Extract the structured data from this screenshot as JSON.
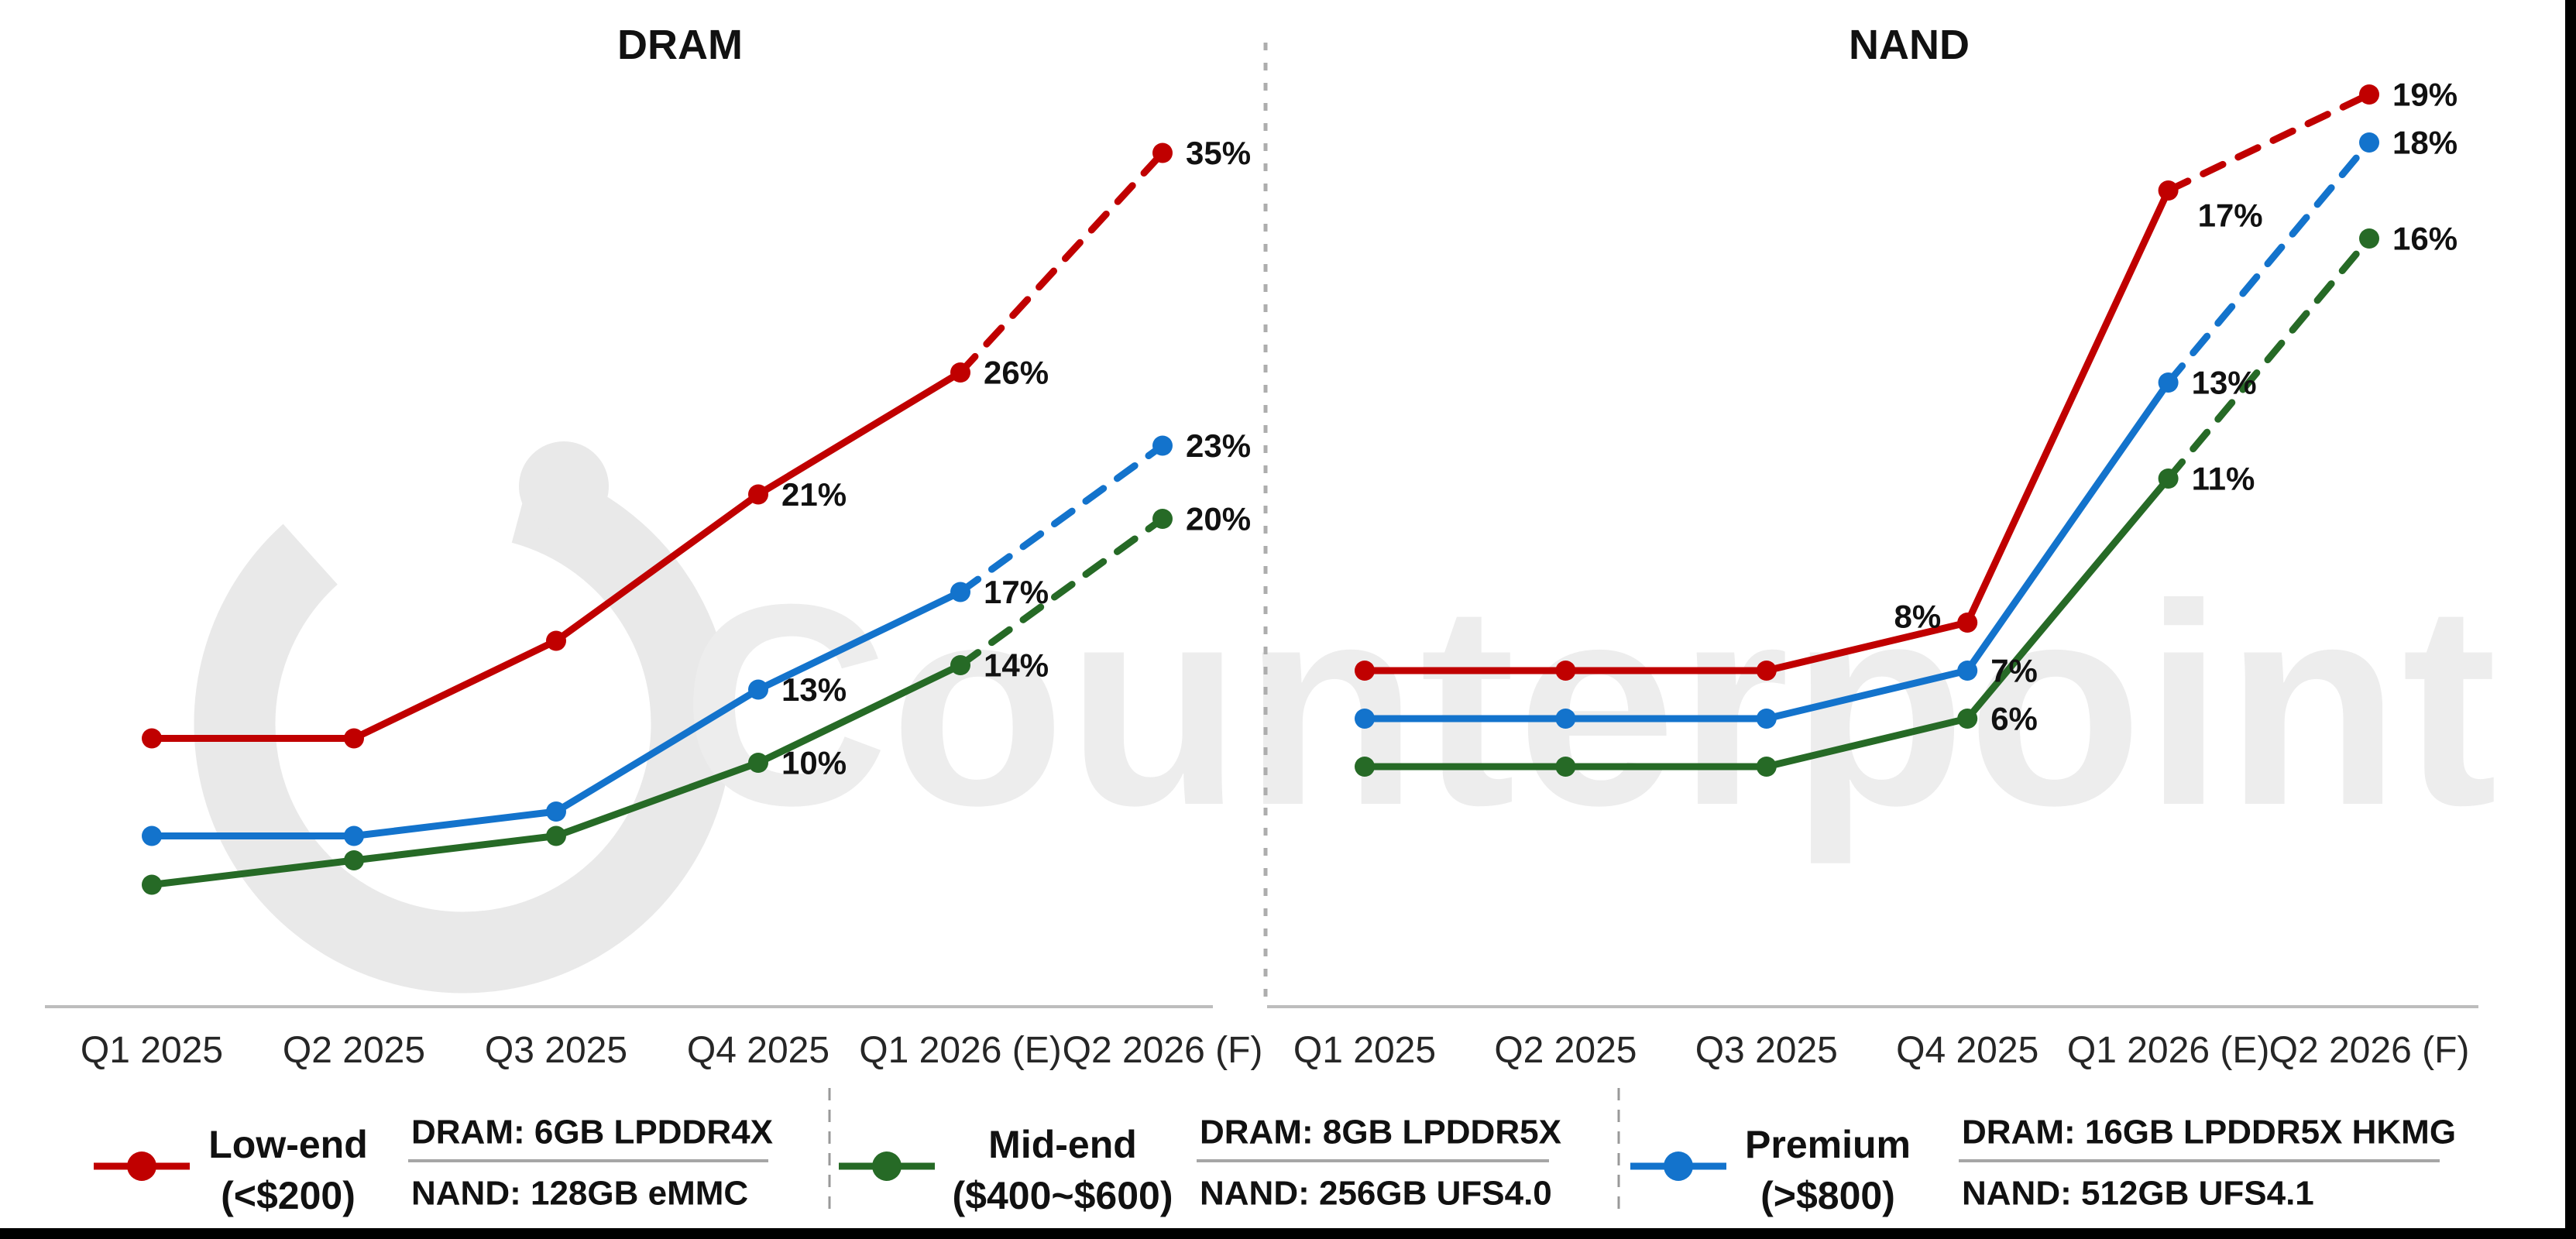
{
  "page": {
    "background": "#FFFFFF",
    "frame": {
      "right_bar_color": "#000000",
      "bottom_bar_color": "#000000"
    }
  },
  "watermark": {
    "text": "Counterpoint",
    "text_color": "#EDEDED",
    "logo_color": "#E9E9E9"
  },
  "chart_data": [
    {
      "type": "line",
      "title": "DRAM",
      "categories": [
        "Q1 2025",
        "Q2 2025",
        "Q3 2025",
        "Q4 2025",
        "Q1 2026 (E)",
        "Q2 2026 (F)"
      ],
      "ylim": [
        0,
        38
      ],
      "grid": false,
      "legend_position": "bottom",
      "unlabeled_values_estimated": true,
      "series": [
        {
          "name": "Low-end (<$200)",
          "color": "#C00000",
          "values": [
            11,
            11,
            15,
            21,
            26,
            35
          ],
          "labels": [
            "",
            "",
            "",
            "21%",
            "26%",
            "35%"
          ],
          "dashed_last_segment": true
        },
        {
          "name": "Mid-end ($400~$600)",
          "color": "#266A26",
          "values": [
            5,
            6,
            7,
            10,
            14,
            20
          ],
          "labels": [
            "",
            "",
            "",
            "10%",
            "14%",
            "20%"
          ],
          "dashed_last_segment": true
        },
        {
          "name": "Premium (>$800)",
          "color": "#1373CC",
          "values": [
            7,
            7,
            8,
            13,
            17,
            23
          ],
          "labels": [
            "",
            "",
            "",
            "13%",
            "17%",
            "23%"
          ],
          "dashed_last_segment": true
        }
      ]
    },
    {
      "type": "line",
      "title": "NAND",
      "categories": [
        "Q1 2025",
        "Q2 2025",
        "Q3 2025",
        "Q4 2025",
        "Q1 2026 (E)",
        "Q2 2026 (F)"
      ],
      "ylim": [
        0,
        20
      ],
      "grid": false,
      "legend_position": "bottom",
      "unlabeled_values_estimated": true,
      "series": [
        {
          "name": "Low-end (<$200)",
          "color": "#C00000",
          "values": [
            7,
            7,
            7,
            8,
            17,
            19
          ],
          "labels": [
            "",
            "",
            "",
            "8%",
            "17%",
            "19%"
          ],
          "dashed_last_segment": true
        },
        {
          "name": "Mid-end ($400~$600)",
          "color": "#266A26",
          "values": [
            5,
            5,
            5,
            6,
            11,
            16
          ],
          "labels": [
            "",
            "",
            "",
            "6%",
            "11%",
            "16%"
          ],
          "dashed_last_segment": true
        },
        {
          "name": "Premium (>$800)",
          "color": "#1373CC",
          "values": [
            6,
            6,
            6,
            7,
            13,
            18
          ],
          "labels": [
            "",
            "",
            "",
            "7%",
            "13%",
            "18%"
          ],
          "dashed_last_segment": true
        }
      ]
    }
  ],
  "legend": {
    "items": [
      {
        "name_line1": "Low-end",
        "name_line2": "(<$200)",
        "color": "#C00000",
        "spec_line1": "DRAM: 6GB LPDDR4X",
        "spec_line2": "NAND: 128GB eMMC"
      },
      {
        "name_line1": "Mid-end",
        "name_line2": "($400~$600)",
        "color": "#266A26",
        "spec_line1": "DRAM: 8GB LPDDR5X",
        "spec_line2": "NAND: 256GB UFS4.0"
      },
      {
        "name_line1": "Premium",
        "name_line2": "(>$800)",
        "color": "#1373CC",
        "spec_line1": "DRAM: 16GB LPDDR5X HKMG",
        "spec_line2": "NAND: 512GB UFS4.1"
      }
    ]
  }
}
